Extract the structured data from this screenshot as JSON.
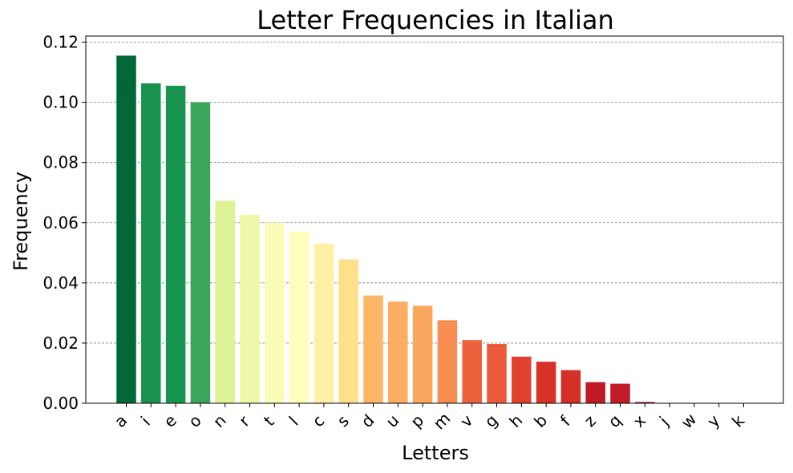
{
  "chart_data": {
    "type": "bar",
    "title": "Letter Frequencies in Italian",
    "xlabel": "Letters",
    "ylabel": "Frequency",
    "ylim": [
      0,
      0.122
    ],
    "yticks": [
      "0.00",
      "0.02",
      "0.04",
      "0.06",
      "0.08",
      "0.10",
      "0.12"
    ],
    "ytick_values": [
      0,
      0.02,
      0.04,
      0.06,
      0.08,
      0.1,
      0.12
    ],
    "grid": true,
    "categories": [
      "a",
      "i",
      "e",
      "o",
      "n",
      "r",
      "t",
      "l",
      "c",
      "s",
      "d",
      "u",
      "p",
      "m",
      "v",
      "g",
      "h",
      "b",
      "f",
      "z",
      "q",
      "x",
      "j",
      "w",
      "y",
      "k"
    ],
    "values": [
      0.1155,
      0.1063,
      0.1055,
      0.1,
      0.0673,
      0.0626,
      0.06,
      0.057,
      0.053,
      0.0478,
      0.0358,
      0.0338,
      0.0324,
      0.0276,
      0.021,
      0.0197,
      0.0155,
      0.0138,
      0.011,
      0.007,
      0.0065,
      0.0004,
      0.0001,
      0.0001,
      0.0001,
      0.0001
    ],
    "colors": [
      "#006837",
      "#17934e",
      "#17934e",
      "#3aa659",
      "#dff295",
      "#eef8a8",
      "#f8fcb6",
      "#fefebd",
      "#fff0a8",
      "#fee08b",
      "#fdb567",
      "#fdad60",
      "#fca55d",
      "#f88d52",
      "#ee613d",
      "#eb5b3b",
      "#e0422f",
      "#d83128",
      "#d62f27",
      "#c01a27",
      "#c11c27",
      "#a50026",
      "#a50026",
      "#a50026",
      "#a50026",
      "#a50026"
    ]
  }
}
